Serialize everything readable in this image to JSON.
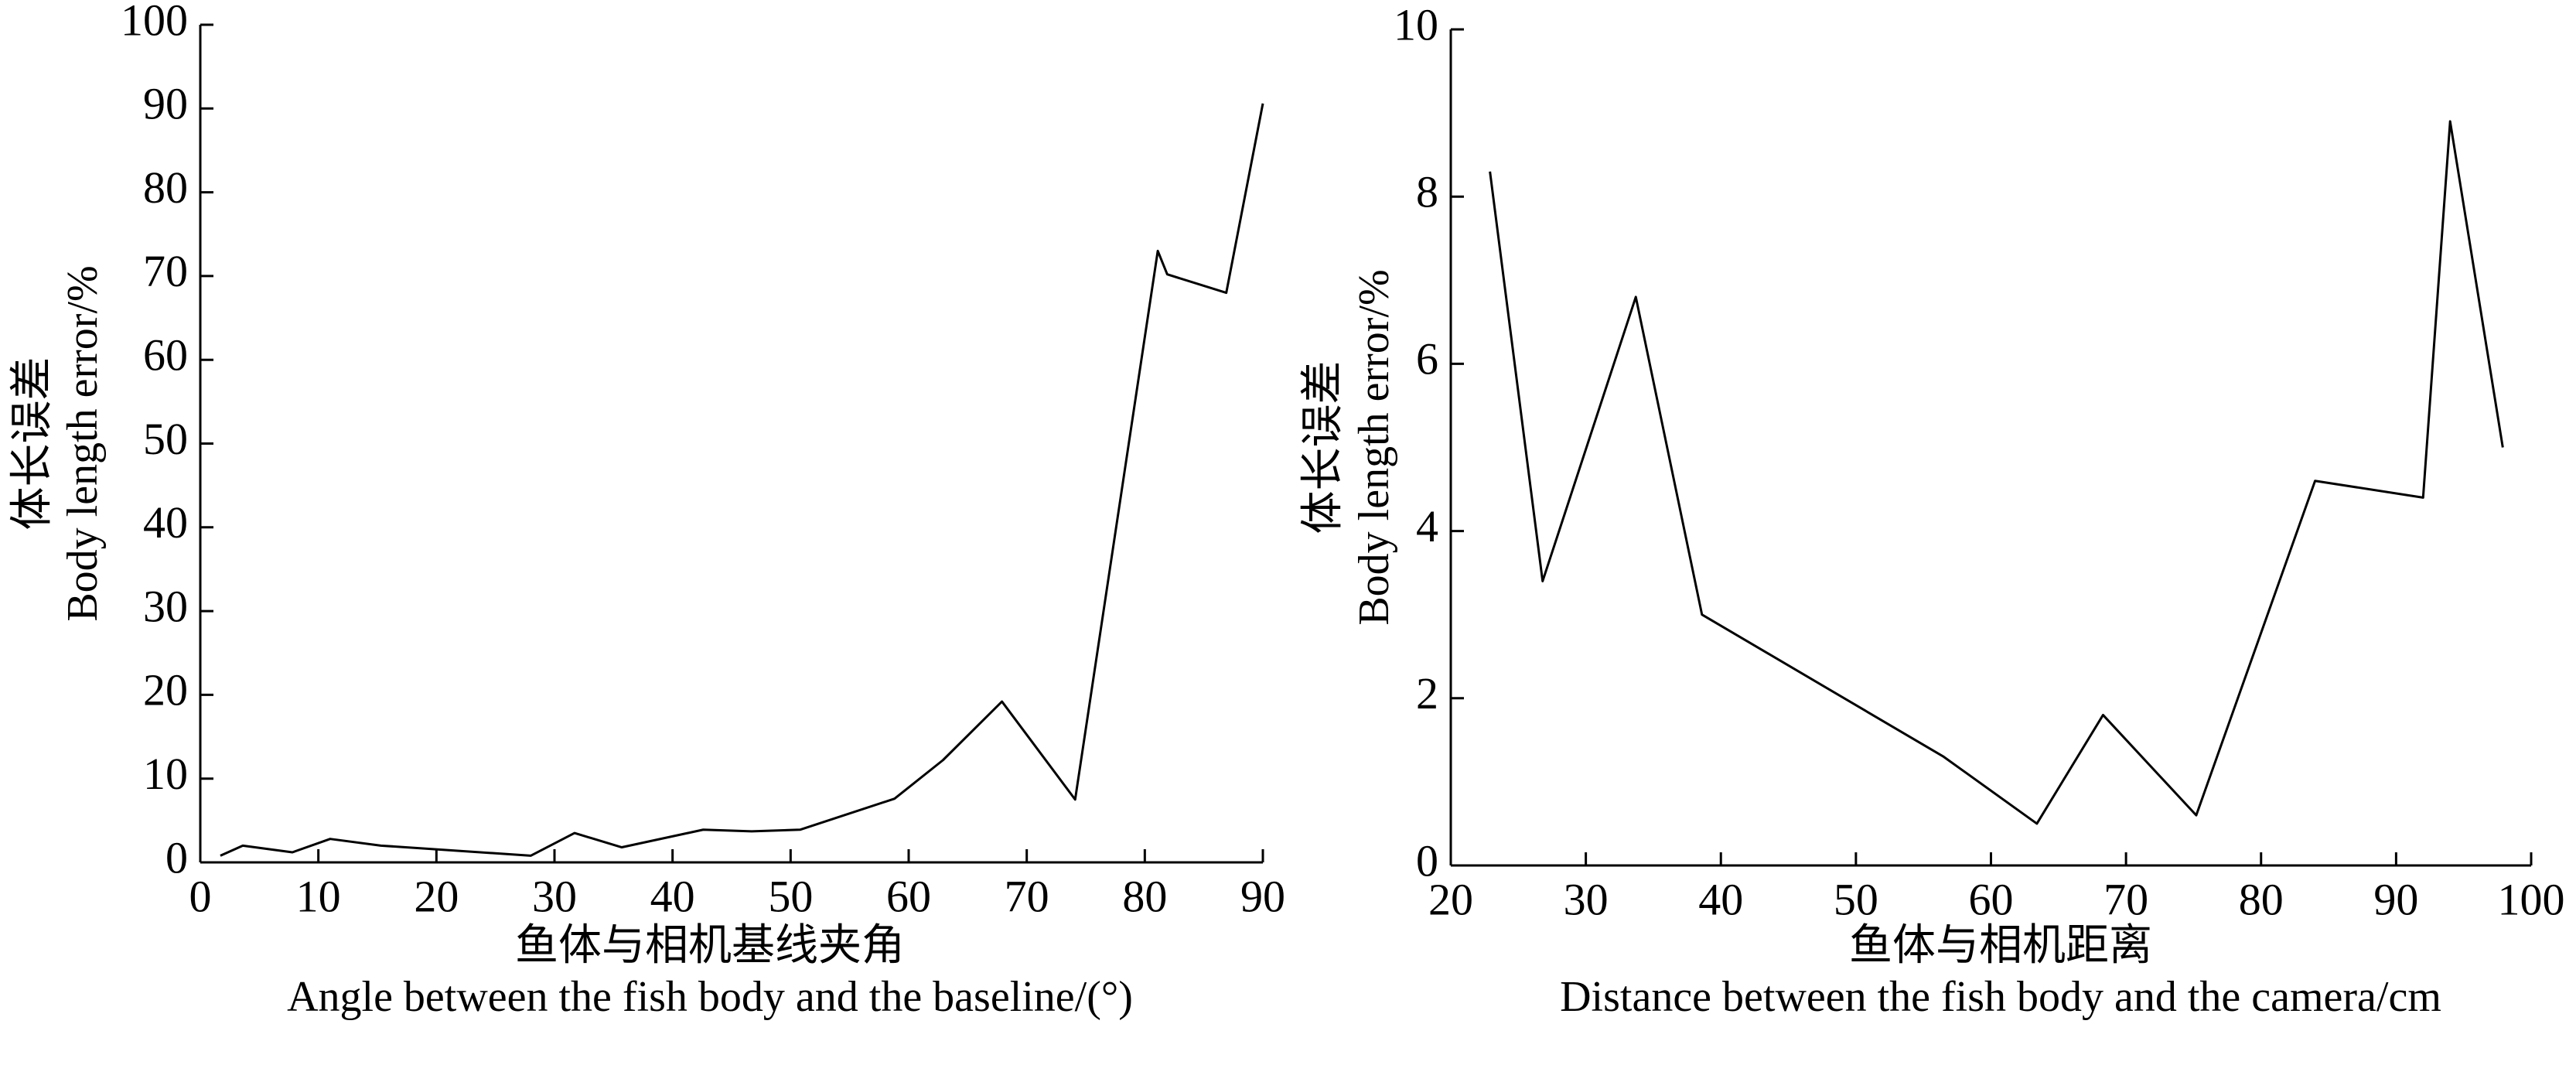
{
  "chart_data": [
    {
      "type": "line",
      "xlabel": [
        "鱼体与相机基线夹角",
        "Angle between the fish body and the baseline/(°)"
      ],
      "ylabel": [
        "体长误差",
        "Body length error/%"
      ],
      "x": [
        1.7,
        3.6,
        7.8,
        11,
        15.3,
        28,
        31.7,
        35.7,
        42.6,
        46.7,
        50.8,
        58.8,
        62.9,
        67.9,
        74.1,
        81.1,
        81.9,
        86.9,
        90
      ],
      "series": [
        {
          "color": "#000000",
          "values": [
            0.8,
            2,
            1.2,
            2.8,
            2,
            0.8,
            3.5,
            1.8,
            3.9,
            3.7,
            3.9,
            7.6,
            12.2,
            19.2,
            7.5,
            73,
            70.2,
            68,
            90.6
          ]
        }
      ],
      "xlim": [
        0,
        90
      ],
      "xticks": [
        0,
        10,
        20,
        30,
        40,
        50,
        60,
        70,
        80,
        90
      ],
      "ylim": [
        0,
        100
      ],
      "yticks": [
        0,
        10,
        20,
        30,
        40,
        50,
        60,
        70,
        80,
        90,
        100
      ]
    },
    {
      "type": "line",
      "xlabel": [
        "鱼体与相机距离",
        "Distance between the fish body and the camera/cm"
      ],
      "ylabel": [
        "体长误差",
        "Body length error/%"
      ],
      "x": [
        22.9,
        26.8,
        33.7,
        38.6,
        56.5,
        63.4,
        68.3,
        75.2,
        84,
        92,
        94,
        97.9
      ],
      "series": [
        {
          "color": "#000000",
          "values": [
            8.3,
            3.4,
            6.8,
            3.0,
            1.3,
            0.5,
            1.8,
            0.6,
            4.6,
            4.4,
            8.9,
            5.0
          ]
        }
      ],
      "xlim": [
        20,
        100
      ],
      "xticks": [
        20,
        30,
        40,
        50,
        60,
        70,
        80,
        90,
        100
      ],
      "ylim": [
        0,
        10
      ],
      "yticks": [
        0,
        2,
        4,
        6,
        8,
        10
      ]
    }
  ]
}
